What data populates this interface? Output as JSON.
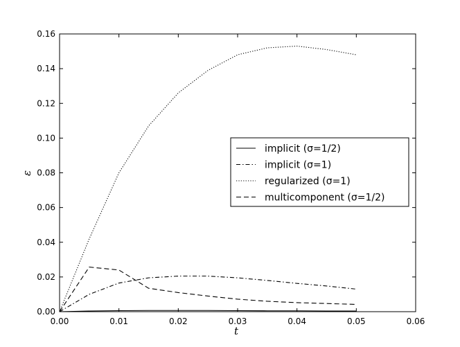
{
  "chart_data": {
    "type": "line",
    "title": "",
    "xlabel": "t",
    "ylabel": "ε",
    "xlim": [
      0,
      0.06
    ],
    "ylim": [
      0,
      0.16
    ],
    "xticks": [
      0,
      0.01,
      0.02,
      0.03,
      0.04,
      0.05,
      0.06
    ],
    "yticks": [
      0,
      0.02,
      0.04,
      0.06,
      0.08,
      0.1,
      0.12,
      0.14,
      0.16
    ],
    "xtick_labels": [
      "0.00",
      "0.01",
      "0.02",
      "0.03",
      "0.04",
      "0.05",
      "0.06"
    ],
    "ytick_labels": [
      "0.00",
      "0.02",
      "0.04",
      "0.06",
      "0.08",
      "0.10",
      "0.12",
      "0.14",
      "0.16"
    ],
    "grid": false,
    "legend_position": "right",
    "series": [
      {
        "name": "implicit (σ=1/2)",
        "style": "solid",
        "x": [
          0,
          0.005,
          0.01,
          0.015,
          0.02,
          0.025,
          0.03,
          0.035,
          0.04,
          0.045,
          0.05
        ],
        "y": [
          0,
          0.0004,
          0.0006,
          0.0007,
          0.0007,
          0.0007,
          0.0006,
          0.0005,
          0.0005,
          0.0004,
          0.0004
        ]
      },
      {
        "name": "implicit (σ=1)",
        "style": "dashdot",
        "x": [
          0,
          0.005,
          0.01,
          0.015,
          0.02,
          0.025,
          0.03,
          0.035,
          0.04,
          0.045,
          0.05
        ],
        "y": [
          0,
          0.01,
          0.0165,
          0.0195,
          0.0205,
          0.0205,
          0.0195,
          0.018,
          0.0163,
          0.0148,
          0.013
        ]
      },
      {
        "name": "regularized (σ=1)",
        "style": "dotted",
        "x": [
          0,
          0.005,
          0.01,
          0.015,
          0.02,
          0.025,
          0.03,
          0.035,
          0.04,
          0.045,
          0.05
        ],
        "y": [
          0,
          0.042,
          0.08,
          0.107,
          0.126,
          0.139,
          0.148,
          0.152,
          0.153,
          0.151,
          0.148
        ]
      },
      {
        "name": "multicomponent (σ=1/2)",
        "style": "dashed",
        "x": [
          0,
          0.005,
          0.01,
          0.015,
          0.02,
          0.025,
          0.03,
          0.035,
          0.04,
          0.045,
          0.05
        ],
        "y": [
          0,
          0.0257,
          0.024,
          0.0135,
          0.011,
          0.009,
          0.0072,
          0.006,
          0.0052,
          0.0047,
          0.0042
        ]
      }
    ]
  }
}
